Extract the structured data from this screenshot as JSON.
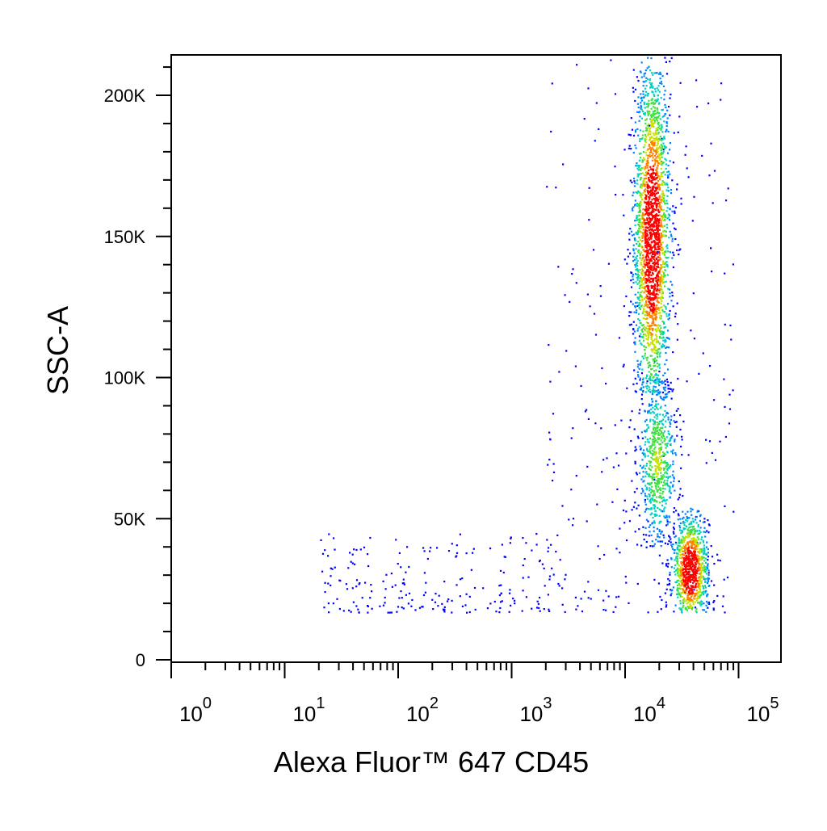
{
  "chart_data": {
    "type": "scatter",
    "subtype": "flow-cytometry-density-dot-plot",
    "title": "",
    "xlabel": "Alexa Fluor™ 647 CD45",
    "ylabel": "SSC-A",
    "x_scale": "log",
    "xlim": [
      1,
      150000
    ],
    "ylim": [
      -5000,
      215000
    ],
    "x_tick_labels": [
      {
        "base": "10",
        "exp": "0",
        "value": 1
      },
      {
        "base": "10",
        "exp": "1",
        "value": 10
      },
      {
        "base": "10",
        "exp": "2",
        "value": 100
      },
      {
        "base": "10",
        "exp": "3",
        "value": 1000
      },
      {
        "base": "10",
        "exp": "4",
        "value": 10000
      },
      {
        "base": "10",
        "exp": "5",
        "value": 100000
      }
    ],
    "y_ticks": [
      {
        "label": "0",
        "value": 0
      },
      {
        "label": "50K",
        "value": 50000
      },
      {
        "label": "100K",
        "value": 100000
      },
      {
        "label": "150K",
        "value": 150000
      },
      {
        "label": "200K",
        "value": 200000
      }
    ],
    "grid": false,
    "legend": "none",
    "color_scale": [
      "#0000ff",
      "#0080ff",
      "#00d0c0",
      "#40e040",
      "#c8e000",
      "#ff8000",
      "#ff0000"
    ],
    "populations": [
      {
        "id": "granulocytes",
        "x_center": 17000,
        "x_log_sd": 0.08,
        "y_center": 150000,
        "y_sd": 32000,
        "y_range": [
          95000,
          215000
        ],
        "points": 2200,
        "density": "high"
      },
      {
        "id": "monocytes",
        "x_center": 19000,
        "x_log_sd": 0.09,
        "y_center": 70000,
        "y_sd": 16000,
        "y_range": [
          40000,
          100000
        ],
        "points": 700,
        "density": "medium"
      },
      {
        "id": "lymphocytes",
        "x_center": 37000,
        "x_log_sd": 0.08,
        "y_center": 32000,
        "y_sd": 10000,
        "y_range": [
          17000,
          55000
        ],
        "points": 1000,
        "density": "high"
      },
      {
        "id": "low-cd45-events",
        "x_range": [
          20,
          3000
        ],
        "y_range": [
          17000,
          45000
        ],
        "points": 220,
        "density": "low"
      },
      {
        "id": "scattered-events",
        "x_range": [
          2000,
          90000
        ],
        "y_range": [
          17000,
          215000
        ],
        "points": 260,
        "density": "low"
      }
    ]
  }
}
